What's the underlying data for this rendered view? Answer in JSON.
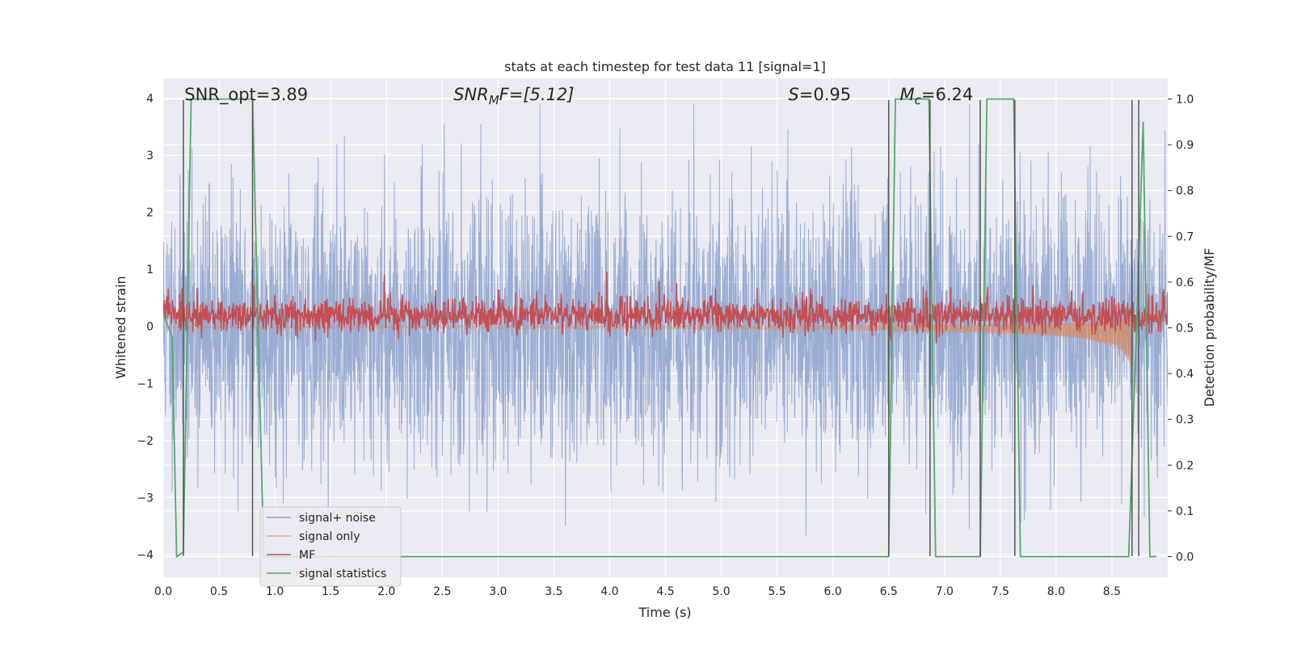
{
  "chart_data": {
    "type": "line",
    "title": "stats at each timestep for test data 11 [signal=1]",
    "xlabel": "Time (s)",
    "ylabel": "Whitened strain",
    "y2label": "Detection probability/MF",
    "xlim": [
      0,
      9.0
    ],
    "ylim": [
      -4.4,
      4.35
    ],
    "y2lim": [
      -0.045,
      1.045
    ],
    "xticks": [
      0.0,
      0.5,
      1.0,
      1.5,
      2.0,
      2.5,
      3.0,
      3.5,
      4.0,
      4.5,
      5.0,
      5.5,
      6.0,
      6.5,
      7.0,
      7.5,
      8.0,
      8.5
    ],
    "xtick_labels": [
      "0.0",
      "0.5",
      "1.0",
      "1.5",
      "2.0",
      "2.5",
      "3.0",
      "3.5",
      "4.0",
      "4.5",
      "5.0",
      "5.5",
      "6.0",
      "6.5",
      "7.0",
      "7.5",
      "8.0",
      "8.5"
    ],
    "yticks": [
      -4,
      -3,
      -2,
      -1,
      0,
      1,
      2,
      3,
      4
    ],
    "ytick_labels": [
      "−4",
      "−3",
      "−2",
      "−1",
      "0",
      "1",
      "2",
      "3",
      "4"
    ],
    "y2ticks": [
      0.0,
      0.1,
      0.2,
      0.3,
      0.4,
      0.5,
      0.6,
      0.7,
      0.8,
      0.9,
      1.0
    ],
    "y2tick_labels": [
      "0.0",
      "0.1",
      "0.2",
      "0.3",
      "0.4",
      "0.5",
      "0.6",
      "0.7",
      "0.8",
      "0.9",
      "1.0"
    ],
    "grid": true,
    "legend_position": "lower-left",
    "annotations": [
      {
        "id": "snr-opt",
        "text": "SNR_opt=3.89",
        "x": 0.19
      },
      {
        "id": "snr-mf",
        "text": "SNR",
        "sub": "M",
        "tail": "F=[5.12]",
        "x": 2.6
      },
      {
        "id": "s-value",
        "text": "S",
        "tail": "=0.95",
        "x": 5.6
      },
      {
        "id": "mc-value",
        "text": "M",
        "sub": "c",
        "tail": "=6.24",
        "x": 6.6
      }
    ],
    "series": [
      {
        "name": "signal+ noise",
        "color": "#8ca1cc",
        "axis": "left",
        "description_range": [
          -3.9,
          3.9
        ]
      },
      {
        "name": "signal only",
        "color": "#dd8452",
        "axis": "left",
        "envelope": {
          "x": [
            0.0,
            1.0,
            3.0,
            5.0,
            6.0,
            7.0,
            7.5,
            8.0,
            8.3,
            8.5,
            8.6,
            8.65,
            8.68
          ],
          "amp": [
            0.02,
            0.02,
            0.025,
            0.03,
            0.04,
            0.06,
            0.08,
            0.11,
            0.15,
            0.22,
            0.3,
            0.4,
            0.5
          ]
        }
      },
      {
        "name": "MF",
        "color": "#c44e52",
        "axis": "right",
        "baseline": 0.525
      },
      {
        "name": "signal statistics",
        "color": "#55a868",
        "axis": "right",
        "x": [
          0.0,
          0.08,
          0.12,
          0.18,
          0.25,
          0.8,
          0.9,
          6.5,
          6.56,
          6.86,
          6.92,
          7.32,
          7.38,
          7.62,
          7.68,
          8.65,
          8.72,
          8.78,
          8.84,
          8.9
        ],
        "values": [
          0.53,
          0.48,
          0.0,
          0.01,
          1.0,
          1.0,
          0.0,
          0.0,
          1.0,
          1.0,
          0.0,
          0.0,
          1.0,
          1.0,
          0.0,
          0.0,
          0.5,
          0.95,
          0.0,
          0.0
        ]
      }
    ],
    "vertical_markers": {
      "color": "#555555",
      "x": [
        0.18,
        0.8,
        6.5,
        6.87,
        7.32,
        7.63,
        8.68,
        8.74
      ]
    }
  }
}
